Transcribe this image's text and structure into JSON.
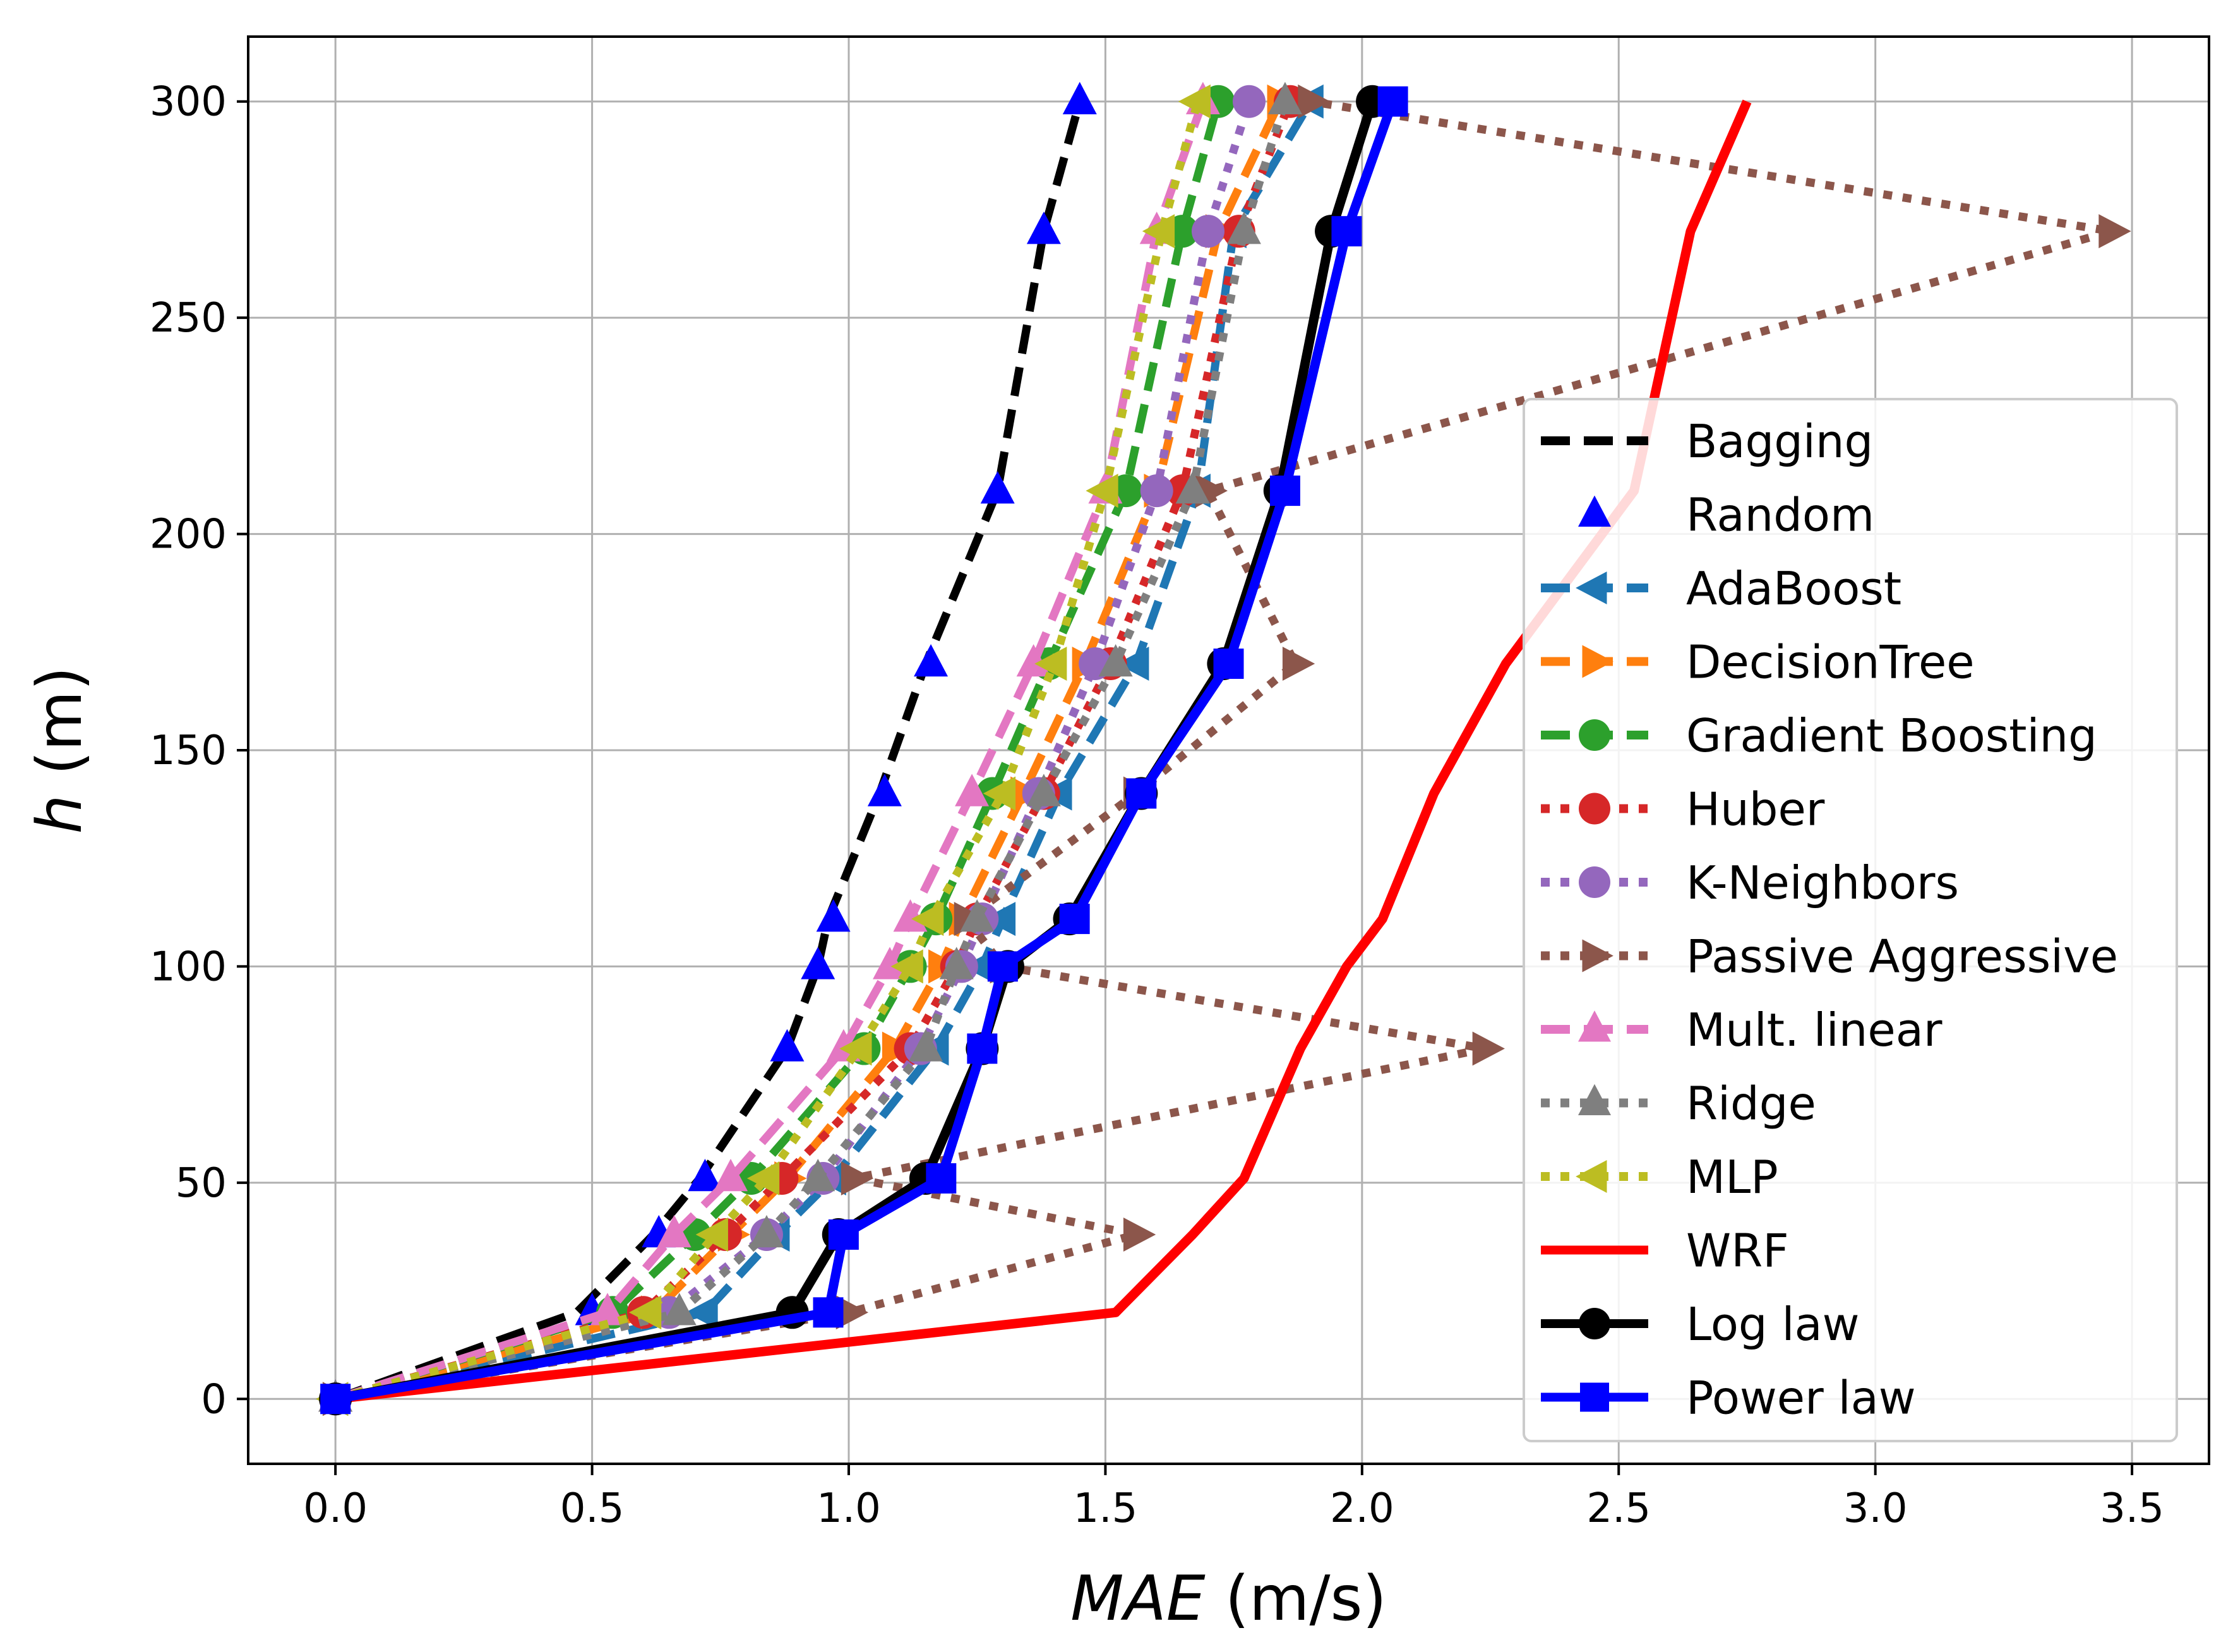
{
  "chart_data": {
    "type": "line",
    "xlabel": "MAE",
    "xlabel_unit": " (m/s)",
    "ylabel": "h",
    "ylabel_unit": " (m)",
    "xlim": [
      -0.17,
      3.65
    ],
    "ylim": [
      -15,
      315
    ],
    "xticks": [
      0.0,
      0.5,
      1.0,
      1.5,
      2.0,
      2.5,
      3.0,
      3.5
    ],
    "xtick_labels": [
      "0.0",
      "0.5",
      "1.0",
      "1.5",
      "2.0",
      "2.5",
      "3.0",
      "3.5"
    ],
    "yticks": [
      0,
      50,
      100,
      150,
      200,
      250,
      300
    ],
    "ytick_labels": [
      "0",
      "50",
      "100",
      "150",
      "200",
      "250",
      "300"
    ],
    "grid": true,
    "legend_position": "right",
    "heights": [
      0,
      20,
      38,
      51,
      81,
      100,
      111,
      140,
      170,
      210,
      270,
      300
    ],
    "series": [
      {
        "name": "Bagging",
        "color": "#000000",
        "linestyle": "dashed",
        "marker": "none",
        "x": [
          0,
          0.47,
          0.62,
          0.71,
          0.88,
          0.94,
          0.96,
          1.06,
          1.15,
          1.29,
          1.38,
          1.45
        ]
      },
      {
        "name": "Random",
        "color": "#0000ff",
        "linestyle": "none",
        "marker": "triangle-up",
        "x": [
          0,
          0.5,
          0.63,
          0.72,
          0.88,
          0.94,
          0.97,
          1.07,
          1.16,
          1.29,
          1.38,
          1.45
        ]
      },
      {
        "name": "AdaBoost",
        "color": "#1f77b4",
        "linestyle": "dashed",
        "marker": "triangle-left",
        "x": [
          0,
          0.72,
          0.86,
          0.97,
          1.17,
          1.26,
          1.3,
          1.41,
          1.56,
          1.68,
          1.75,
          1.9
        ]
      },
      {
        "name": "DecisionTree",
        "color": "#ff7f0e",
        "linestyle": "dashed",
        "marker": "triangle-right",
        "x": [
          0,
          0.62,
          0.77,
          0.88,
          1.09,
          1.18,
          1.22,
          1.34,
          1.46,
          1.6,
          1.72,
          1.84
        ]
      },
      {
        "name": "Gradient Boosting",
        "color": "#2ca02c",
        "linestyle": "dashed",
        "marker": "circle",
        "x": [
          0,
          0.54,
          0.7,
          0.81,
          1.03,
          1.12,
          1.17,
          1.28,
          1.39,
          1.54,
          1.65,
          1.72
        ]
      },
      {
        "name": "Huber",
        "color": "#d62728",
        "linestyle": "dotted",
        "marker": "circle",
        "x": [
          0,
          0.6,
          0.76,
          0.87,
          1.12,
          1.21,
          1.25,
          1.38,
          1.51,
          1.65,
          1.76,
          1.86
        ]
      },
      {
        "name": "K-Neighbors",
        "color": "#9467bd",
        "linestyle": "dotted",
        "marker": "circle",
        "x": [
          0,
          0.65,
          0.84,
          0.95,
          1.14,
          1.22,
          1.26,
          1.37,
          1.48,
          1.6,
          1.7,
          1.78
        ]
      },
      {
        "name": "Passive Aggressive",
        "color": "#8c564b",
        "linestyle": "dotted",
        "marker": "triangle-right",
        "x": [
          0,
          1.0,
          1.56,
          1.01,
          2.24,
          1.3,
          1.23,
          1.56,
          1.87,
          1.7,
          3.46,
          1.9
        ]
      },
      {
        "name": "Mult. linear",
        "color": "#e377c2",
        "linestyle": "dashed",
        "marker": "triangle-up",
        "x": [
          0,
          0.53,
          0.66,
          0.77,
          0.99,
          1.08,
          1.12,
          1.24,
          1.36,
          1.5,
          1.6,
          1.69
        ]
      },
      {
        "name": "Ridge",
        "color": "#7f7f7f",
        "linestyle": "dotted",
        "marker": "triangle-up",
        "x": [
          0,
          0.67,
          0.84,
          0.94,
          1.15,
          1.21,
          1.25,
          1.38,
          1.52,
          1.67,
          1.77,
          1.85
        ]
      },
      {
        "name": "MLP",
        "color": "#bcbd22",
        "linestyle": "dotted",
        "marker": "triangle-left",
        "x": [
          0,
          0.61,
          0.74,
          0.84,
          1.02,
          1.12,
          1.16,
          1.3,
          1.4,
          1.5,
          1.61,
          1.68
        ]
      },
      {
        "name": "WRF",
        "color": "#ff0000",
        "linestyle": "solid",
        "marker": "none",
        "x": [
          0,
          1.52,
          1.67,
          1.77,
          1.88,
          1.97,
          2.04,
          2.14,
          2.28,
          2.53,
          2.64,
          2.75
        ]
      },
      {
        "name": "Log law",
        "color": "#000000",
        "linestyle": "solid",
        "marker": "circle",
        "x": [
          0,
          0.89,
          0.98,
          1.15,
          1.26,
          1.31,
          1.43,
          1.57,
          1.73,
          1.84,
          1.94,
          2.02
        ]
      },
      {
        "name": "Power law",
        "color": "#0000ff",
        "linestyle": "solid",
        "marker": "square",
        "x": [
          0,
          0.96,
          0.99,
          1.18,
          1.26,
          1.3,
          1.44,
          1.57,
          1.74,
          1.85,
          1.97,
          2.06
        ]
      }
    ]
  }
}
